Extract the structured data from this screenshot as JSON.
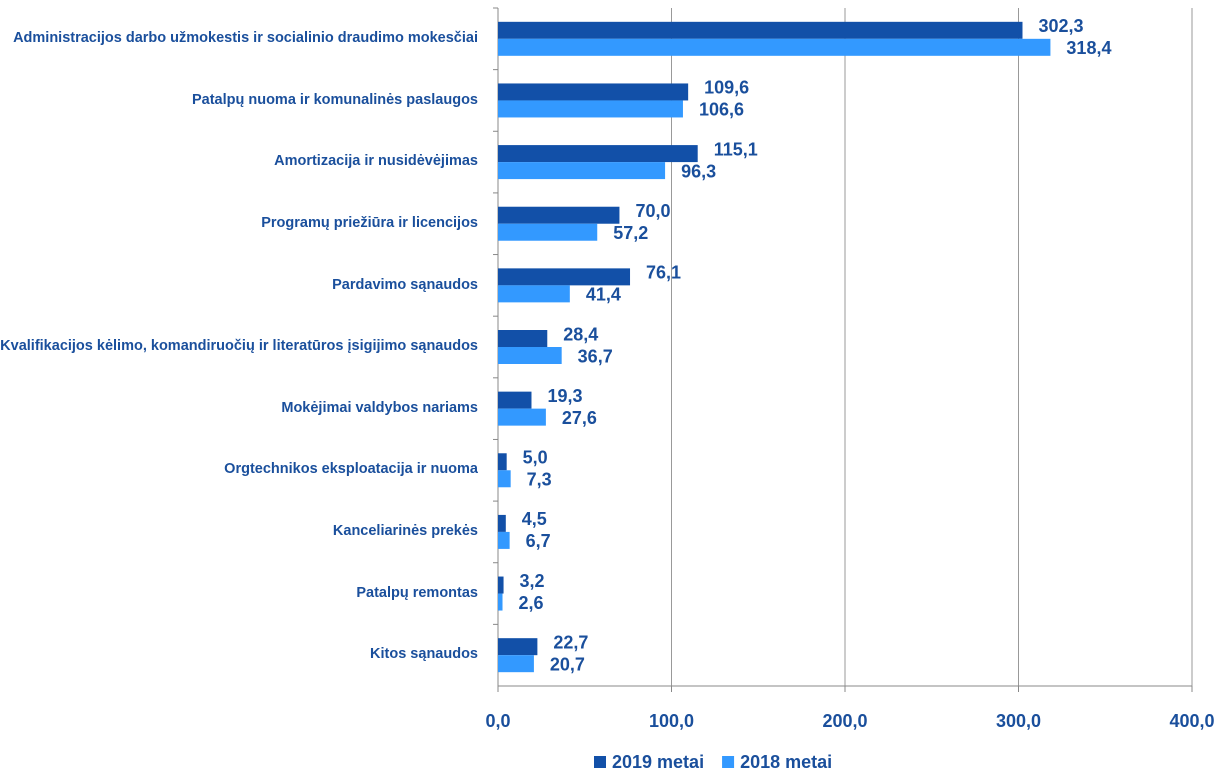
{
  "chart_data": {
    "type": "bar",
    "orientation": "horizontal",
    "categories": [
      "Administracijos darbo užmokestis ir socialinio draudimo mokesčiai",
      "Patalpų nuoma ir komunalinės paslaugos",
      "Amortizacija ir nusidėvėjimas",
      "Programų priežiūra ir licencijos",
      "Pardavimo sąnaudos",
      "Kvalifikacijos kėlimo, komandiruočių ir literatūros įsigijimo sąnaudos",
      "Mokėjimai valdybos nariams",
      "Orgtechnikos eksploatacija ir nuoma",
      "Kanceliarinės prekės",
      "Patalpų remontas",
      "Kitos sąnaudos"
    ],
    "series": [
      {
        "name": "2019 metai",
        "color": "#1250a8",
        "values": [
          302.3,
          109.6,
          115.1,
          70.0,
          76.1,
          28.4,
          19.3,
          5.0,
          4.5,
          3.2,
          22.7
        ],
        "value_labels": [
          "302,3",
          "109,6",
          "115,1",
          "70,0",
          "76,1",
          "28,4",
          "19,3",
          "5,0",
          "4,5",
          "3,2",
          "22,7"
        ]
      },
      {
        "name": "2018 metai",
        "color": "#3399ff",
        "values": [
          318.4,
          106.6,
          96.3,
          57.2,
          41.4,
          36.7,
          27.6,
          7.3,
          6.7,
          2.6,
          20.7
        ],
        "value_labels": [
          "318,4",
          "106,6",
          "96,3",
          "57,2",
          "41,4",
          "36,7",
          "27,6",
          "7,3",
          "6,7",
          "2,6",
          "20,7"
        ]
      }
    ],
    "xlim": [
      0,
      400
    ],
    "xticks": [
      {
        "value": 0,
        "label": "0,0"
      },
      {
        "value": 100,
        "label": "100,0"
      },
      {
        "value": 200,
        "label": "200,0"
      },
      {
        "value": 300,
        "label": "300,0"
      },
      {
        "value": 400,
        "label": "400,0"
      }
    ],
    "grid": true,
    "legend": "bottom"
  }
}
